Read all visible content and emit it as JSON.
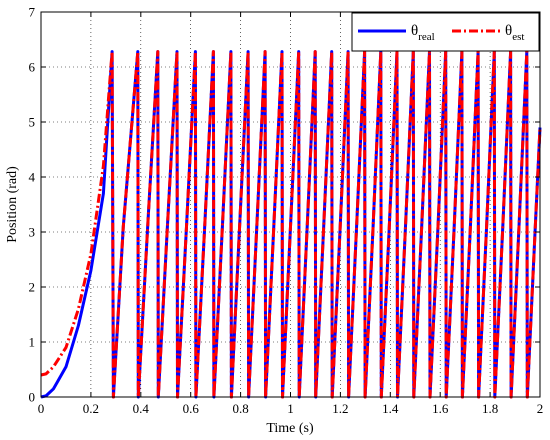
{
  "chart_data": {
    "type": "line",
    "title": "",
    "xlabel": "Time (s)",
    "ylabel": "Position  (rad)",
    "xlim": [
      0,
      2
    ],
    "ylim": [
      0,
      7
    ],
    "xticks": [
      0,
      0.2,
      0.4,
      0.6,
      0.8,
      1,
      1.2,
      1.4,
      1.6,
      1.8,
      2
    ],
    "xtick_labels": [
      "0",
      "0.2",
      "0.4",
      "0.6",
      "0.8",
      "1",
      "1.2",
      "1.4",
      "1.6",
      "1.8",
      "2"
    ],
    "yticks": [
      0,
      1,
      2,
      3,
      4,
      5,
      6,
      7
    ],
    "ytick_labels": [
      "0",
      "1",
      "2",
      "3",
      "4",
      "5",
      "6",
      "7"
    ],
    "grid": true,
    "legend_position": "top-right",
    "series": [
      {
        "name": "θ",
        "subscript": "real",
        "color": "#0000ff",
        "style": "solid",
        "description": "sawtooth wrapping 0 to 2π; quadratic ramp-up until first wrap, then constant-speed wraps",
        "x": [
          0,
          0.02,
          0.05,
          0.1,
          0.15,
          0.2,
          0.25,
          0.285,
          0.29,
          0.33,
          0.388,
          0.39,
          0.43,
          0.468,
          0.47,
          0.508,
          0.545,
          0.547,
          0.583,
          0.619,
          0.621,
          0.656,
          0.691,
          0.693,
          0.727,
          0.761,
          0.763,
          0.796,
          0.83,
          0.832,
          0.865,
          0.898,
          0.9,
          0.933,
          0.966,
          0.968,
          1.0,
          1.033,
          1.035,
          1.067,
          1.099,
          1.101,
          1.133,
          1.165,
          1.167,
          1.199,
          1.231,
          1.233,
          1.265,
          1.297,
          1.299,
          1.331,
          1.362,
          1.364,
          1.396,
          1.427,
          1.429,
          1.461,
          1.492,
          1.494,
          1.526,
          1.557,
          1.559,
          1.591,
          1.622,
          1.624,
          1.656,
          1.687,
          1.689,
          1.721,
          1.752,
          1.754,
          1.786,
          1.817,
          1.819,
          1.851,
          1.882,
          1.884,
          1.916,
          1.947,
          1.949,
          1.981,
          2.0
        ],
        "y": [
          0,
          0.02,
          0.15,
          0.55,
          1.3,
          2.3,
          3.7,
          6.28,
          0,
          3.1,
          6.28,
          0,
          3.3,
          6.28,
          0,
          3.2,
          6.28,
          0,
          3.1,
          6.28,
          0,
          3.1,
          6.28,
          0,
          3.1,
          6.28,
          0,
          3.1,
          6.28,
          0,
          3.1,
          6.28,
          0,
          3.1,
          6.28,
          0,
          3.1,
          6.28,
          0,
          3.1,
          6.28,
          0,
          3.1,
          6.28,
          0,
          3.1,
          6.28,
          0,
          3.1,
          6.28,
          0,
          3.1,
          6.28,
          0,
          3.1,
          6.28,
          0,
          3.1,
          6.28,
          0,
          3.1,
          6.28,
          0,
          3.1,
          6.28,
          0,
          3.1,
          6.28,
          0,
          3.1,
          6.28,
          0,
          3.1,
          6.28,
          0,
          3.1,
          6.28,
          0,
          3.1,
          6.28,
          0,
          3.1,
          4.9
        ]
      },
      {
        "name": "θ",
        "subscript": "est",
        "color": "#ff0000",
        "style": "dash-dot",
        "x": [
          0,
          0.02,
          0.05,
          0.1,
          0.15,
          0.2,
          0.25,
          0.28,
          0.285,
          0.29,
          0.33,
          0.388,
          0.39,
          0.43,
          0.468,
          0.47,
          0.508,
          0.545,
          0.547,
          0.583,
          0.619,
          0.621,
          0.656,
          0.691,
          0.693,
          0.727,
          0.761,
          0.763,
          0.796,
          0.83,
          0.832,
          0.865,
          0.898,
          0.9,
          0.933,
          0.966,
          0.968,
          1.0,
          1.033,
          1.035,
          1.067,
          1.099,
          1.101,
          1.133,
          1.165,
          1.167,
          1.199,
          1.231,
          1.233,
          1.265,
          1.297,
          1.299,
          1.331,
          1.362,
          1.364,
          1.396,
          1.427,
          1.429,
          1.461,
          1.492,
          1.494,
          1.526,
          1.557,
          1.559,
          1.591,
          1.622,
          1.624,
          1.656,
          1.687,
          1.689,
          1.721,
          1.752,
          1.754,
          1.786,
          1.817,
          1.819,
          1.851,
          1.882,
          1.884,
          1.916,
          1.947,
          1.949,
          1.981,
          2.0
        ],
        "y": [
          0.4,
          0.42,
          0.55,
          0.9,
          1.6,
          2.6,
          4.2,
          6.0,
          6.28,
          0,
          3.1,
          6.28,
          0,
          3.3,
          6.28,
          0,
          3.2,
          6.28,
          0,
          3.1,
          6.28,
          0,
          3.1,
          6.28,
          0,
          3.1,
          6.28,
          0,
          3.1,
          6.28,
          0,
          3.1,
          6.28,
          0,
          3.1,
          6.28,
          0,
          3.1,
          6.28,
          0,
          3.1,
          6.28,
          0,
          3.1,
          6.28,
          0,
          3.1,
          6.28,
          0,
          3.1,
          6.28,
          0,
          3.1,
          6.28,
          0,
          3.1,
          6.28,
          0,
          3.1,
          6.28,
          0,
          3.1,
          6.28,
          0,
          3.1,
          6.28,
          0,
          3.1,
          6.28,
          0,
          3.1,
          6.28,
          0,
          3.1,
          6.28,
          0,
          3.1,
          6.28,
          0,
          3.1,
          6.28,
          0,
          3.1,
          4.9
        ]
      }
    ]
  }
}
